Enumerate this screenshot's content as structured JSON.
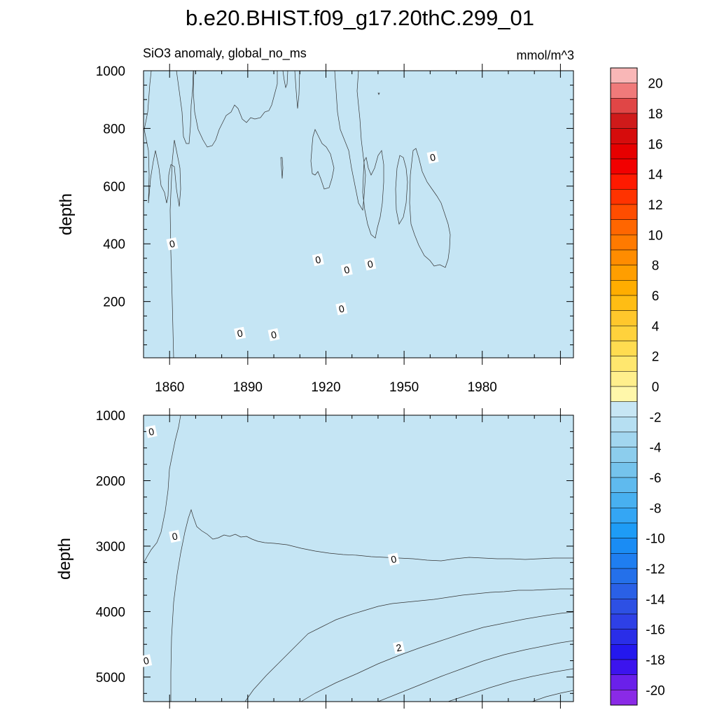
{
  "title": "b.e20.BHIST.f09_g17.20thC.299_01",
  "chart_data": {
    "type": "heatmap",
    "title": "b.e20.BHIST.f09_g17.20thC.299_01",
    "subtitle_left": "SiO3 anomaly, global_no_ms",
    "subtitle_right": "mmol/m^3",
    "x_axis": {
      "label": "",
      "range": [
        1850,
        2015
      ],
      "ticks": [
        1860,
        1890,
        1920,
        1950,
        1980
      ]
    },
    "panels": [
      {
        "name": "upper",
        "ylabel": "depth",
        "y_range": [
          1000,
          5
        ],
        "y_ticks": [
          200,
          400,
          600,
          800,
          1000
        ],
        "show_x_tick_labels": true,
        "contour_labels": [
          {
            "x": 1861,
            "y": 400,
            "text": "0"
          },
          {
            "x": 1887,
            "y": 90,
            "text": "0"
          },
          {
            "x": 1900,
            "y": 85,
            "text": "0"
          },
          {
            "x": 1917,
            "y": 345,
            "text": "0"
          },
          {
            "x": 1926,
            "y": 175,
            "text": "0"
          },
          {
            "x": 1928,
            "y": 310,
            "text": "0"
          },
          {
            "x": 1937,
            "y": 330,
            "text": "0"
          },
          {
            "x": 1961,
            "y": 700,
            "text": "0"
          }
        ]
      },
      {
        "name": "lower",
        "ylabel": "depth",
        "y_range": [
          1000,
          5375
        ],
        "y_ticks": [
          1000,
          2000,
          3000,
          4000,
          5000
        ],
        "show_x_tick_labels": false,
        "contour_labels": [
          {
            "x": 1853,
            "y": 1250,
            "text": "0"
          },
          {
            "x": 1862,
            "y": 2850,
            "text": "0"
          },
          {
            "x": 1946,
            "y": 3200,
            "text": "0"
          },
          {
            "x": 1948,
            "y": 4550,
            "text": "2"
          },
          {
            "x": 1851,
            "y": 4750,
            "text": "0"
          }
        ]
      }
    ],
    "colorbar": {
      "levels": [
        -20,
        -19,
        -18,
        -17,
        -16,
        -15,
        -14,
        -13,
        -12,
        -11,
        -10,
        -9,
        -8,
        -7,
        -6,
        -5,
        -4,
        -3,
        -2,
        -1,
        0,
        1,
        2,
        3,
        4,
        5,
        6,
        7,
        8,
        9,
        10,
        11,
        12,
        13,
        14,
        15,
        16,
        17,
        18,
        19,
        20
      ],
      "labels": [
        "20",
        "18",
        "16",
        "14",
        "12",
        "10",
        "8",
        "6",
        "4",
        "2",
        "0",
        "-2",
        "-4",
        "-6",
        "-8",
        "-10",
        "-12",
        "-14",
        "-16",
        "-18",
        "-20"
      ],
      "colors_top_to_bottom": [
        "#f9b7b7",
        "#f07a7a",
        "#e04646",
        "#cf1a1a",
        "#d60c0c",
        "#e60000",
        "#f20000",
        "#ff1a00",
        "#ff3300",
        "#ff4d00",
        "#ff6600",
        "#ff7a00",
        "#ff8c00",
        "#ff9e00",
        "#ffad00",
        "#ffbd14",
        "#ffc72c",
        "#ffd23c",
        "#ffdc50",
        "#ffe76e",
        "#ffef8c",
        "#fff7aa",
        "#c7e6f4",
        "#b6dff2",
        "#a2d6ef",
        "#8ccded",
        "#75c3ec",
        "#5fbaee",
        "#48b0f0",
        "#34a6f4",
        "#1e9cf6",
        "#1a8cf4",
        "#1f7ef0",
        "#2470ea",
        "#2a60e6",
        "#2d50e4",
        "#2e40e6",
        "#2a2ee8",
        "#2418ee",
        "#3c14ee",
        "#6a20ea",
        "#8a2ae6"
      ]
    },
    "colors": {
      "negative_fill": "#c5e5f4",
      "zero_to_one_fill": "#fffbb0",
      "one_to_two_fill": "#fff58c",
      "two_to_three_fill": "#ffec5a",
      "three_to_four_fill": "#ffe03c",
      "four_to_five_fill": "#ffd12a"
    }
  }
}
